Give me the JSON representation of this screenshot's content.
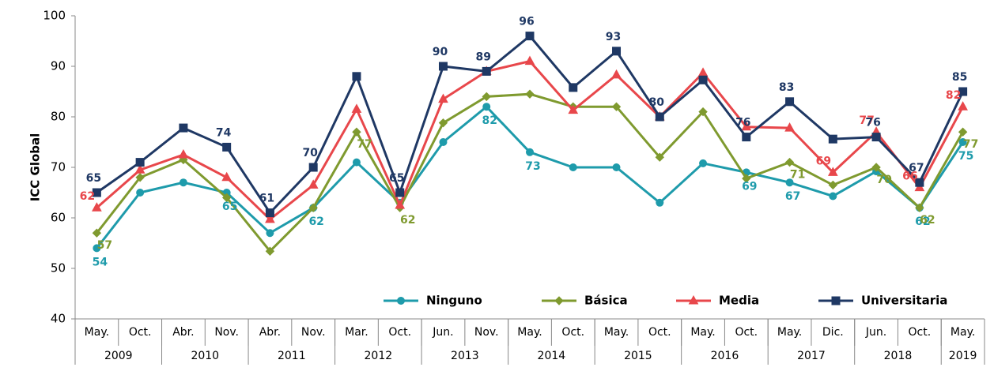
{
  "chart_data": {
    "type": "line",
    "y_label": "ICC Global",
    "categories": [
      "May.",
      "Oct.",
      "Abr.",
      "Nov.",
      "Abr.",
      "Nov.",
      "Mar.",
      "Oct.",
      "Jun.",
      "Nov.",
      "May.",
      "Oct.",
      "May.",
      "Oct.",
      "May.",
      "Oct.",
      "May.",
      "Dic.",
      "Jun.",
      "Oct.",
      "May."
    ],
    "years": [
      {
        "label": "2009",
        "span": 2
      },
      {
        "label": "2010",
        "span": 2
      },
      {
        "label": "2011",
        "span": 2
      },
      {
        "label": "2012",
        "span": 2
      },
      {
        "label": "2013",
        "span": 2
      },
      {
        "label": "2014",
        "span": 2
      },
      {
        "label": "2015",
        "span": 2
      },
      {
        "label": "2016",
        "span": 2
      },
      {
        "label": "2017",
        "span": 2
      },
      {
        "label": "2018",
        "span": 2
      },
      {
        "label": "2019",
        "span": 1
      }
    ],
    "ylim": [
      40,
      100
    ],
    "yticks": [
      40,
      50,
      60,
      70,
      80,
      90,
      100
    ],
    "series": [
      {
        "name": "Ninguno",
        "color": "#1e9bab",
        "marker": "circle",
        "values": [
          54,
          65,
          67,
          65,
          57,
          62,
          71,
          63,
          75,
          82,
          73,
          70,
          70,
          63,
          70.8,
          69,
          67,
          64.3,
          69.2,
          62,
          75
        ],
        "value_labels": [
          "54",
          null,
          null,
          "65",
          null,
          "62",
          null,
          null,
          null,
          "82",
          "73",
          null,
          null,
          null,
          null,
          "69",
          "67",
          null,
          null,
          "62",
          "75"
        ]
      },
      {
        "name": "Básica",
        "color": "#7f9a2f",
        "marker": "diamond",
        "values": [
          57,
          68,
          71.5,
          64,
          53.4,
          62,
          77,
          62,
          78.8,
          84,
          84.5,
          82,
          82,
          72,
          81,
          67.8,
          71,
          66.5,
          70,
          62,
          77
        ],
        "value_labels": [
          "57",
          null,
          null,
          null,
          null,
          null,
          "77",
          "62",
          null,
          null,
          null,
          null,
          null,
          null,
          null,
          null,
          "71",
          null,
          "70",
          "62",
          "77"
        ]
      },
      {
        "name": "Media",
        "color": "#e8474b",
        "marker": "triangle",
        "values": [
          62,
          69.5,
          72.5,
          68,
          59.7,
          66.5,
          81.5,
          62.5,
          83.5,
          89,
          91,
          81.3,
          88.3,
          80,
          88.7,
          78,
          77.8,
          69,
          77,
          66,
          82
        ],
        "value_labels": [
          "62",
          null,
          null,
          null,
          null,
          null,
          null,
          null,
          null,
          null,
          null,
          null,
          null,
          null,
          null,
          null,
          null,
          "69",
          "77",
          "66",
          "82"
        ]
      },
      {
        "name": "Universitaria",
        "color": "#1f3864",
        "marker": "square",
        "values": [
          65,
          71,
          77.8,
          74,
          61,
          70,
          88,
          65,
          90,
          89,
          96,
          85.8,
          93,
          80,
          87.3,
          76,
          83,
          75.6,
          76,
          67,
          85
        ],
        "value_labels": [
          "65",
          null,
          null,
          "74",
          "61",
          "70",
          null,
          "65",
          "90",
          "89",
          "96",
          null,
          "93",
          "80",
          null,
          "76",
          "83",
          null,
          "76",
          "67",
          "85"
        ]
      }
    ]
  }
}
